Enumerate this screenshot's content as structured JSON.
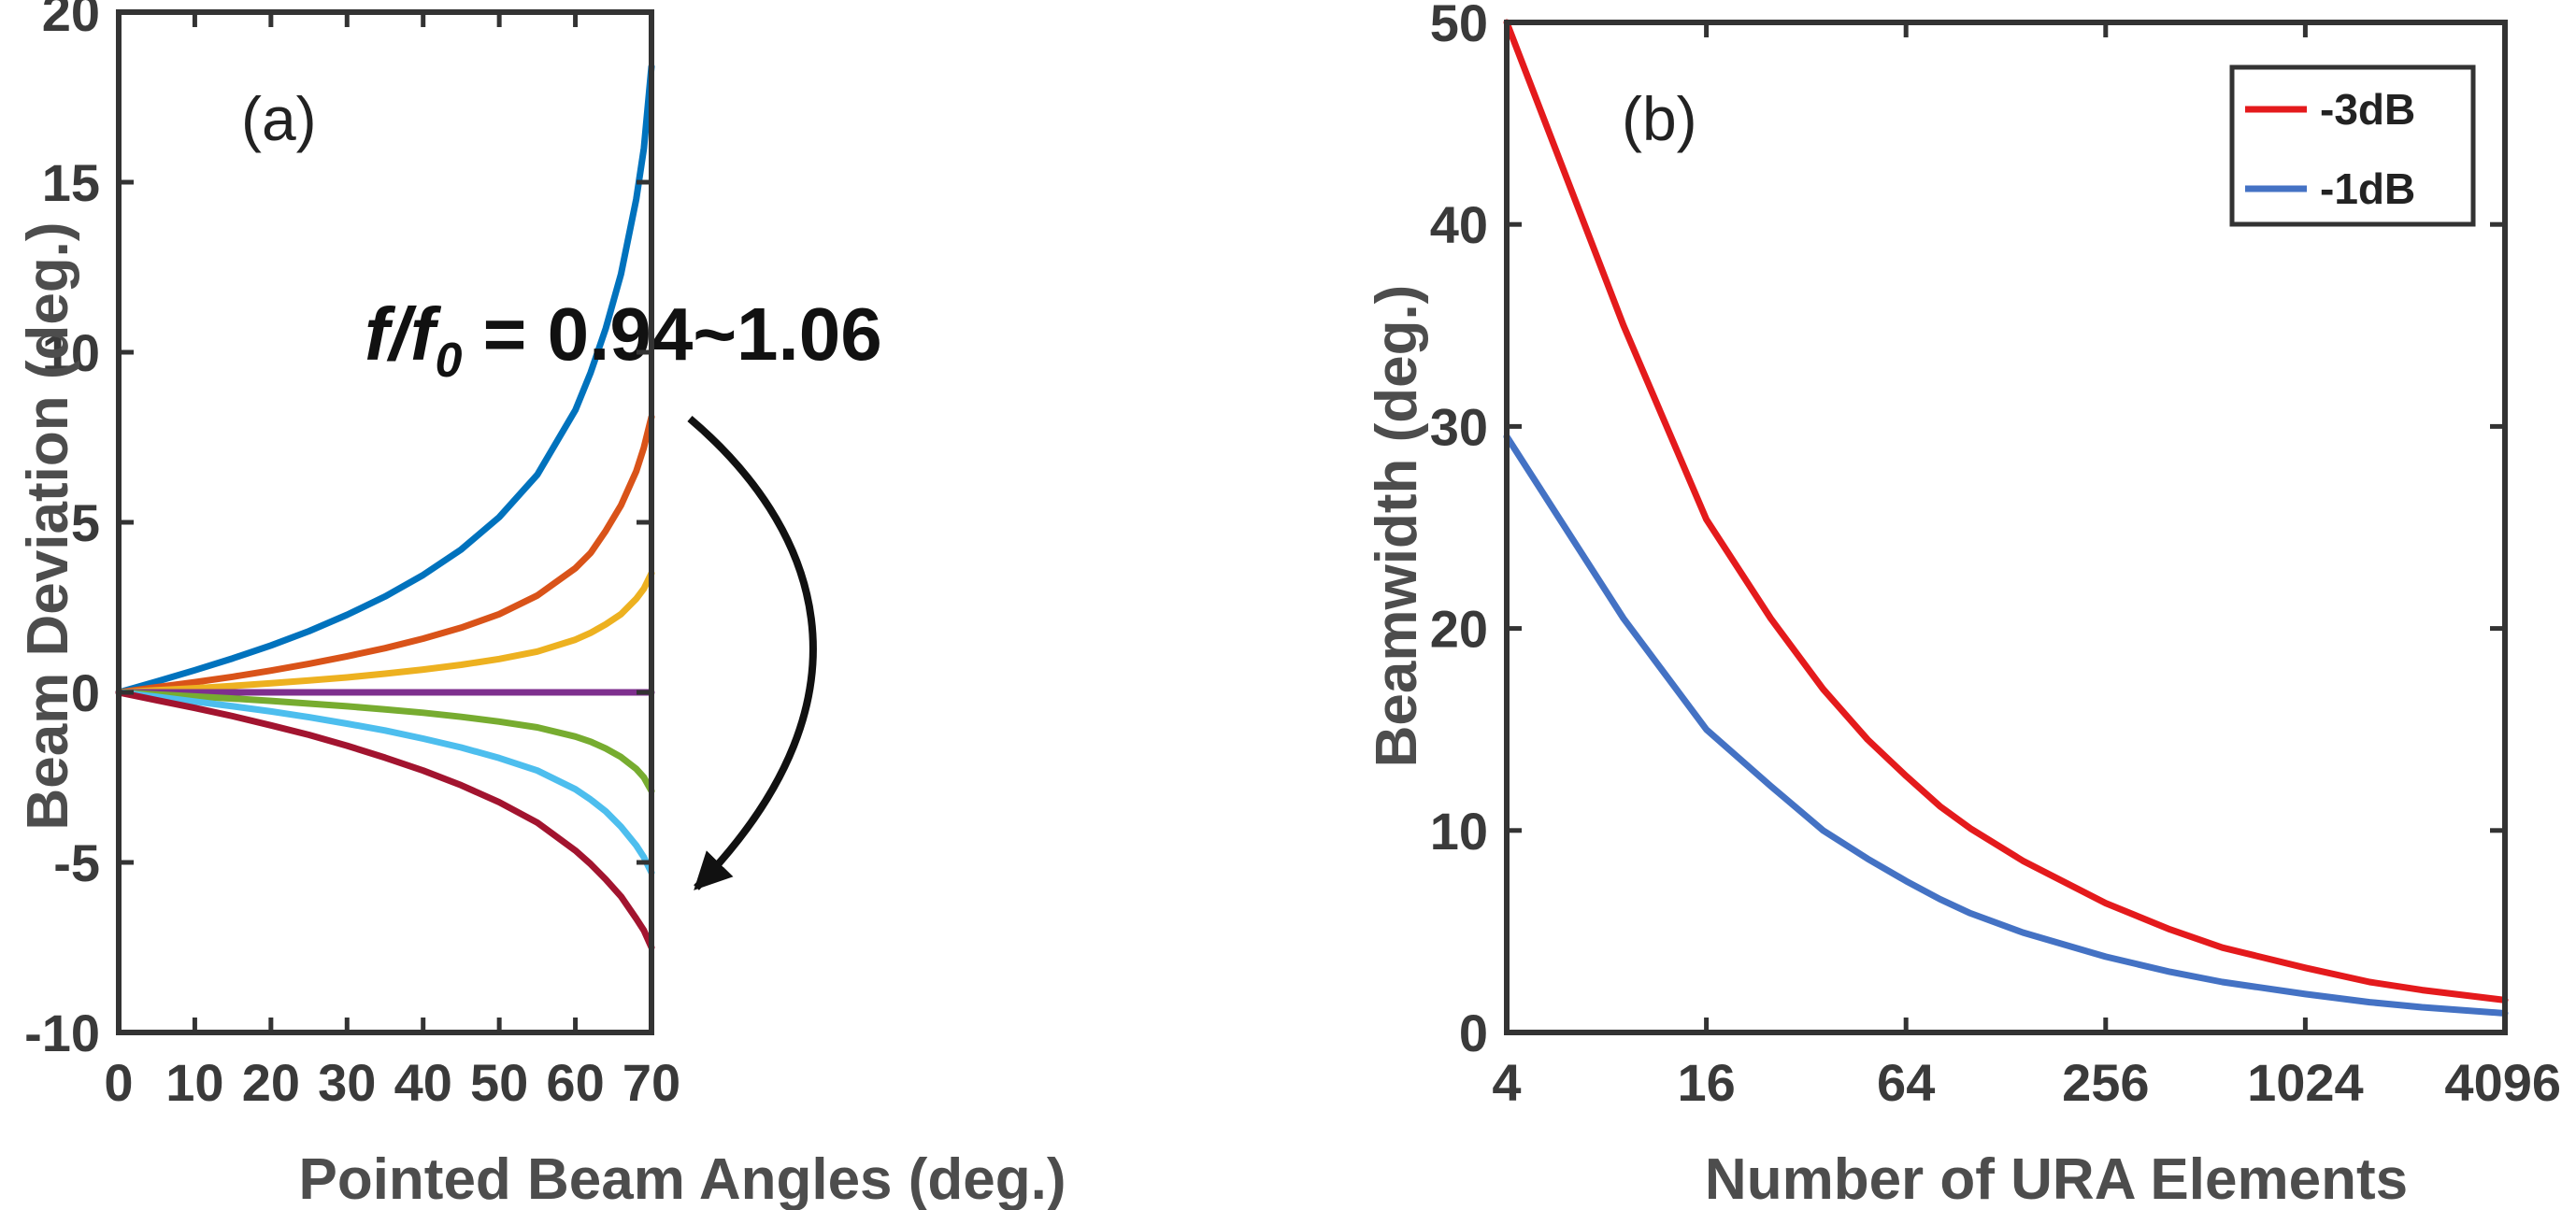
{
  "chart_data": [
    {
      "type": "line",
      "panel_label": "(a)",
      "xlabel": "Pointed Beam Angles (deg.)",
      "ylabel": "Beam Deviation (deg.)",
      "xlim": [
        0,
        70
      ],
      "ylim": [
        -10,
        20
      ],
      "xticks": [
        0,
        10,
        20,
        30,
        40,
        50,
        60,
        70
      ],
      "yticks": [
        -10,
        -5,
        0,
        5,
        10,
        15,
        20
      ],
      "grid": false,
      "annotation": {
        "prefix": "f/f",
        "subscript": "0",
        "suffix": " = 0.94~1.06"
      },
      "x": [
        0,
        5,
        10,
        15,
        20,
        25,
        30,
        35,
        40,
        45,
        50,
        55,
        60,
        62,
        64,
        66,
        68,
        69,
        70
      ],
      "series": [
        {
          "color": "#0072bd",
          "values": [
            0,
            0.32,
            0.65,
            1.0,
            1.38,
            1.8,
            2.28,
            2.82,
            3.45,
            4.2,
            5.15,
            6.4,
            8.3,
            9.4,
            10.7,
            12.3,
            14.5,
            16.0,
            18.4
          ]
        },
        {
          "color": "#d95319",
          "values": [
            0,
            0.15,
            0.3,
            0.46,
            0.64,
            0.84,
            1.06,
            1.3,
            1.58,
            1.9,
            2.3,
            2.85,
            3.65,
            4.1,
            4.75,
            5.5,
            6.5,
            7.2,
            8.1
          ]
        },
        {
          "color": "#edb120",
          "values": [
            0,
            0.06,
            0.12,
            0.19,
            0.27,
            0.35,
            0.44,
            0.55,
            0.67,
            0.81,
            0.98,
            1.2,
            1.55,
            1.75,
            2.0,
            2.3,
            2.75,
            3.05,
            3.5
          ]
        },
        {
          "color": "#7e2f8e",
          "values": [
            0,
            0,
            0,
            0,
            0,
            0,
            0,
            0,
            0,
            0,
            0,
            0,
            0,
            0,
            0,
            0,
            0,
            0,
            0
          ]
        },
        {
          "color": "#77ac30",
          "values": [
            0,
            -0.06,
            -0.12,
            -0.18,
            -0.25,
            -0.33,
            -0.41,
            -0.5,
            -0.6,
            -0.72,
            -0.86,
            -1.03,
            -1.3,
            -1.45,
            -1.65,
            -1.9,
            -2.25,
            -2.5,
            -2.9
          ]
        },
        {
          "color": "#4dbeee",
          "values": [
            0,
            -0.13,
            -0.27,
            -0.41,
            -0.56,
            -0.73,
            -0.92,
            -1.12,
            -1.36,
            -1.62,
            -1.93,
            -2.3,
            -2.85,
            -3.15,
            -3.5,
            -3.95,
            -4.5,
            -4.85,
            -5.3
          ]
        },
        {
          "color": "#a2142f",
          "values": [
            0,
            -0.23,
            -0.46,
            -0.7,
            -0.97,
            -1.25,
            -1.57,
            -1.92,
            -2.3,
            -2.73,
            -3.23,
            -3.83,
            -4.65,
            -5.05,
            -5.5,
            -6.0,
            -6.65,
            -7.0,
            -7.5
          ]
        }
      ]
    },
    {
      "type": "line",
      "panel_label": "(b)",
      "xlabel": "Number of URA Elements",
      "ylabel": "Beamwidth (deg.)",
      "xscale": "log2",
      "xlim": [
        4,
        4096
      ],
      "ylim": [
        0,
        50
      ],
      "xticks": [
        4,
        16,
        64,
        256,
        1024,
        4096
      ],
      "yticks": [
        0,
        10,
        20,
        30,
        40,
        50
      ],
      "grid": false,
      "legend_position": "top-right",
      "x": [
        4,
        9,
        16,
        25,
        36,
        49,
        64,
        81,
        100,
        144,
        256,
        400,
        576,
        1024,
        1600,
        2304,
        4096
      ],
      "series": [
        {
          "name": "-3dB",
          "color": "#e41a1c",
          "values": [
            50.0,
            35.0,
            25.4,
            20.5,
            17.0,
            14.5,
            12.7,
            11.2,
            10.1,
            8.5,
            6.4,
            5.1,
            4.2,
            3.2,
            2.5,
            2.1,
            1.6
          ]
        },
        {
          "name": "-1dB",
          "color": "#4472c4",
          "values": [
            29.5,
            20.5,
            15.0,
            12.2,
            10.0,
            8.6,
            7.5,
            6.6,
            5.9,
            4.95,
            3.75,
            3.0,
            2.5,
            1.9,
            1.5,
            1.25,
            0.95
          ]
        }
      ]
    }
  ]
}
